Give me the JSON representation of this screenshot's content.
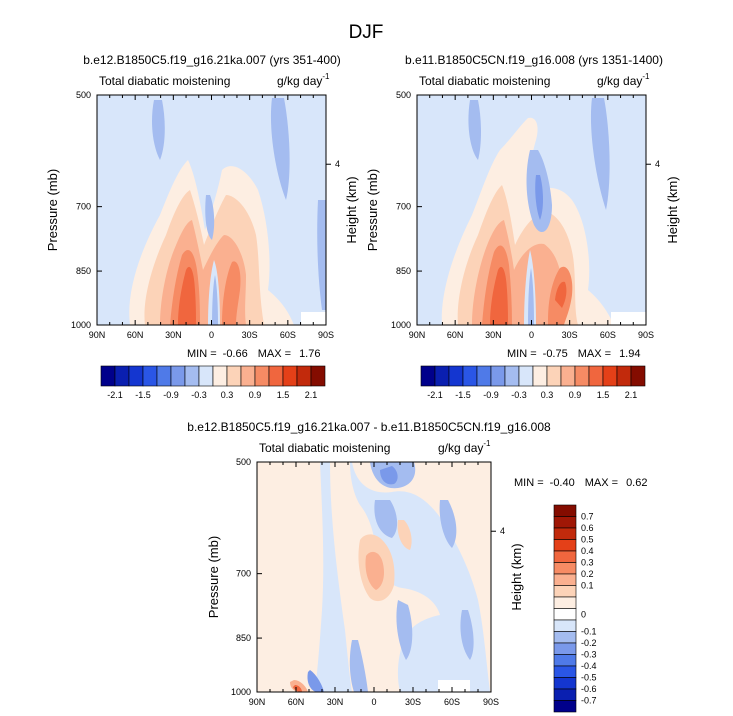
{
  "page_title": "DJF",
  "colors": {
    "blue_ramp": [
      "#00008b",
      "#0a1fb0",
      "#1436d0",
      "#2a56e6",
      "#4f7ae8",
      "#7a99ea",
      "#a4bcf0",
      "#d8e6fa"
    ],
    "red_ramp": [
      "#fdeee2",
      "#fcd3b8",
      "#fab090",
      "#f68b64",
      "#f0663e",
      "#e44018",
      "#c22a0c",
      "#a01706",
      "#840c00"
    ],
    "background_field": "#d8e6fa"
  },
  "chart_data": [
    {
      "type": "heatmap",
      "title": "b.e12.B1850C5.f19_g16.21ka.007 (yrs 351-400)",
      "left_string": "Total diabatic moistening",
      "right_string_main": "g/kg day",
      "right_string_sup": "-1",
      "ylabel": "Pressure (mb)",
      "ylabel_right": "Height (km)",
      "x_ticks": [
        "90N",
        "60N",
        "30N",
        "0",
        "30S",
        "60S",
        "90S"
      ],
      "y_ticks": [
        "500",
        "700",
        "850",
        "1000"
      ],
      "right_ticks": [
        "4"
      ],
      "y_log_scale": true,
      "ylim": [
        1000,
        500
      ],
      "stats_min_label": "MIN =",
      "stats_min": "-0.66",
      "stats_max_label": "MAX =",
      "stats_max": "1.76"
    },
    {
      "type": "heatmap",
      "title": "b.e11.B1850C5CN.f19_g16.008 (yrs 1351-1400)",
      "left_string": "Total diabatic moistening",
      "right_string_main": "g/kg day",
      "right_string_sup": "-1",
      "ylabel": "Pressure (mb)",
      "ylabel_right": "Height (km)",
      "x_ticks": [
        "90N",
        "60N",
        "30N",
        "0",
        "30S",
        "60S",
        "90S"
      ],
      "y_ticks": [
        "500",
        "700",
        "850",
        "1000"
      ],
      "right_ticks": [
        "4"
      ],
      "y_log_scale": true,
      "ylim": [
        1000,
        500
      ],
      "stats_min_label": "MIN =",
      "stats_min": "-0.75",
      "stats_max_label": "MAX =",
      "stats_max": "1.94"
    },
    {
      "type": "heatmap",
      "title": "b.e12.B1850C5.f19_g16.21ka.007 - b.e11.B1850C5CN.f19_g16.008",
      "left_string": "Total diabatic moistening",
      "right_string_main": "g/kg day",
      "right_string_sup": "-1",
      "ylabel": "Pressure (mb)",
      "ylabel_right": "Height (km)",
      "x_ticks": [
        "90N",
        "60N",
        "30N",
        "0",
        "30S",
        "60S",
        "90S"
      ],
      "y_ticks": [
        "500",
        "700",
        "850",
        "1000"
      ],
      "right_ticks": [
        "4"
      ],
      "y_log_scale": true,
      "ylim": [
        1000,
        500
      ],
      "stats_min_label": "MIN =",
      "stats_min": "-0.40",
      "stats_max_label": "MAX =",
      "stats_max": "0.62"
    }
  ],
  "colorbar_top": {
    "labels": [
      "-2.1",
      "-1.5",
      "-0.9",
      "-0.3",
      "0.3",
      "0.9",
      "1.5",
      "2.1"
    ],
    "levels": [
      -2.1,
      -1.8,
      -1.5,
      -1.2,
      -0.9,
      -0.6,
      -0.3,
      0,
      0.3,
      0.6,
      0.9,
      1.2,
      1.5,
      1.8,
      2.1
    ]
  },
  "colorbar_diff": {
    "labels": [
      "0.7",
      "0.6",
      "0.5",
      "0.4",
      "0.3",
      "0.2",
      "0.1",
      "0",
      "-0.1",
      "-0.2",
      "-0.3",
      "-0.4",
      "-0.5",
      "-0.6",
      "-0.7"
    ]
  }
}
